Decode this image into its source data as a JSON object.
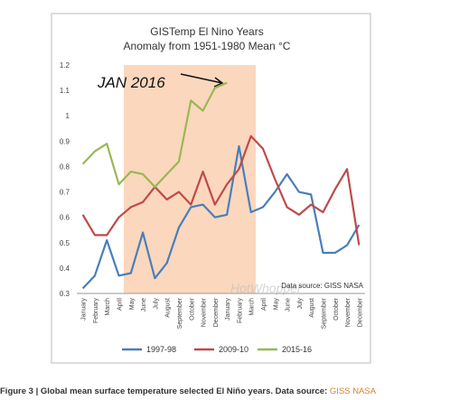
{
  "chart_data": {
    "type": "line",
    "title": "GISTemp El Nino Years",
    "subtitle": "Anomaly from 1951-1980 Mean °C",
    "annotation": "JAN 2016",
    "source_note": "Data source: GISS NASA",
    "watermark": "HotWhopper",
    "categories": [
      "January",
      "February",
      "March",
      "April",
      "May",
      "June",
      "July",
      "August",
      "September",
      "October",
      "November",
      "December",
      "January",
      "February",
      "March",
      "April",
      "May",
      "June",
      "July",
      "August",
      "September",
      "October",
      "November",
      "December"
    ],
    "series": [
      {
        "name": "1997-98",
        "color": "#4a7ebb",
        "values": [
          0.32,
          0.37,
          0.51,
          0.37,
          0.38,
          0.54,
          0.36,
          0.42,
          0.56,
          0.64,
          0.65,
          0.6,
          0.61,
          0.88,
          0.62,
          0.64,
          0.7,
          0.77,
          0.7,
          0.69,
          0.46,
          0.46,
          0.49,
          0.57
        ]
      },
      {
        "name": "2009-10",
        "color": "#be4b48",
        "values": [
          0.61,
          0.53,
          0.53,
          0.6,
          0.64,
          0.66,
          0.72,
          0.67,
          0.7,
          0.65,
          0.78,
          0.65,
          0.73,
          0.79,
          0.92,
          0.87,
          0.75,
          0.64,
          0.61,
          0.65,
          0.62,
          0.71,
          0.79,
          0.49
        ]
      },
      {
        "name": "2015-16",
        "color": "#98b954",
        "values": [
          0.81,
          0.86,
          0.89,
          0.73,
          0.78,
          0.77,
          0.72,
          0.77,
          0.82,
          1.06,
          1.02,
          1.11,
          1.13,
          null,
          null,
          null,
          null,
          null,
          null,
          null,
          null,
          null,
          null,
          null
        ]
      }
    ],
    "ylim": [
      0.3,
      1.2
    ],
    "yticks": [
      0.3,
      0.4,
      0.5,
      0.6,
      0.7,
      0.8,
      0.9,
      1,
      1.1,
      1.2
    ],
    "legend": "bottom"
  },
  "caption": {
    "text": "Figure 3 | Global mean surface temperature selected El Niño years. Data source:",
    "link": "GISS NASA"
  }
}
